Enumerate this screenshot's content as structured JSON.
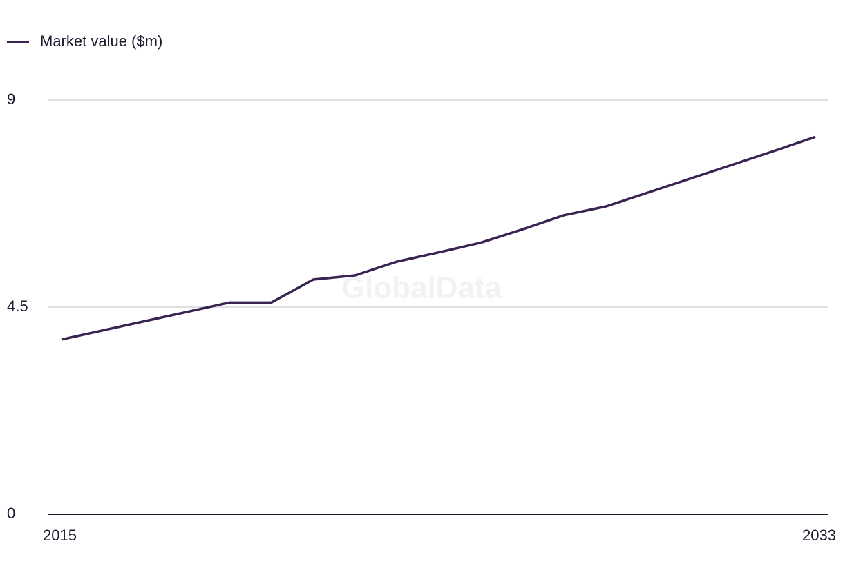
{
  "chart_data": {
    "type": "line",
    "categories": [
      "2015",
      null,
      null,
      null,
      null,
      null,
      null,
      null,
      null,
      null,
      null,
      null,
      null,
      null,
      null,
      null,
      null,
      null,
      "2033"
    ],
    "series": [
      {
        "name": "Market value ($m)",
        "color": "#3a2352",
        "values": [
          3.8,
          4.0,
          4.2,
          4.4,
          4.6,
          4.6,
          5.1,
          5.19,
          5.49,
          5.69,
          5.9,
          6.19,
          6.5,
          6.69,
          6.99,
          7.29,
          7.59,
          7.89,
          8.2
        ]
      }
    ],
    "ylim": [
      0,
      9
    ],
    "yticks": [
      0,
      4.5,
      9
    ],
    "grid": true,
    "legend": "top-left",
    "watermark": "GlobalData"
  }
}
